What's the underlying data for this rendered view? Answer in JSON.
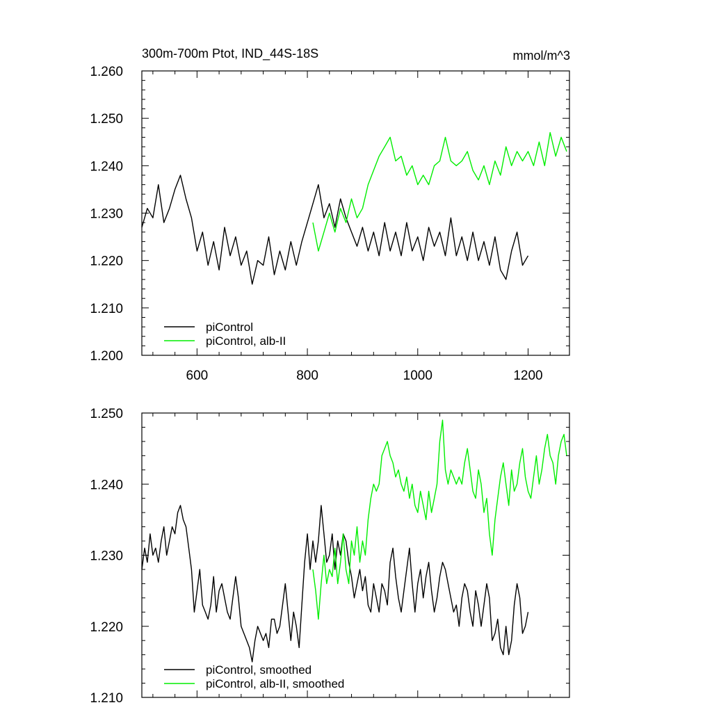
{
  "chart_data": [
    {
      "type": "line",
      "title": "300m-700m Ptot, IND_44S-18S",
      "units": "mmol/m^3",
      "xlabel": "",
      "ylabel": "",
      "xlim": [
        500,
        1275
      ],
      "ylim": [
        1.2,
        1.26
      ],
      "xticks": [
        600,
        800,
        1000,
        1200
      ],
      "xtick_labels": [
        "600",
        "800",
        "1000",
        "1200"
      ],
      "yticks": [
        1.2,
        1.21,
        1.22,
        1.23,
        1.24,
        1.25,
        1.26
      ],
      "ytick_labels": [
        "1.200",
        "1.210",
        "1.220",
        "1.230",
        "1.240",
        "1.250",
        "1.260"
      ],
      "grid": false,
      "legend_position": "bottom-left",
      "colors": {
        "piControl": "#000000",
        "alb-II": "#00ee00"
      },
      "series": [
        {
          "name": "piControl",
          "color": "#000000",
          "x": [
            500,
            510,
            520,
            530,
            540,
            550,
            560,
            570,
            580,
            590,
            600,
            610,
            620,
            630,
            640,
            650,
            660,
            670,
            680,
            690,
            700,
            710,
            720,
            730,
            740,
            750,
            760,
            770,
            780,
            790,
            800,
            810,
            820,
            830,
            840,
            850,
            860,
            870,
            880,
            890,
            900,
            910,
            920,
            930,
            940,
            950,
            960,
            970,
            980,
            990,
            1000,
            1010,
            1020,
            1030,
            1040,
            1050,
            1060,
            1070,
            1080,
            1090,
            1100,
            1110,
            1120,
            1130,
            1140,
            1150,
            1160,
            1170,
            1180,
            1190,
            1200
          ],
          "y": [
            1.227,
            1.231,
            1.229,
            1.236,
            1.228,
            1.231,
            1.235,
            1.238,
            1.233,
            1.229,
            1.222,
            1.226,
            1.219,
            1.224,
            1.218,
            1.227,
            1.221,
            1.225,
            1.219,
            1.222,
            1.215,
            1.22,
            1.219,
            1.225,
            1.217,
            1.222,
            1.218,
            1.224,
            1.219,
            1.224,
            1.228,
            1.232,
            1.236,
            1.229,
            1.232,
            1.227,
            1.233,
            1.229,
            1.226,
            1.223,
            1.227,
            1.222,
            1.226,
            1.221,
            1.228,
            1.222,
            1.226,
            1.221,
            1.228,
            1.222,
            1.225,
            1.22,
            1.227,
            1.223,
            1.226,
            1.221,
            1.229,
            1.221,
            1.225,
            1.22,
            1.226,
            1.22,
            1.224,
            1.219,
            1.225,
            1.218,
            1.216,
            1.222,
            1.226,
            1.219,
            1.221
          ]
        },
        {
          "name": "piControl, alb-II",
          "color": "#00ee00",
          "x": [
            810,
            820,
            830,
            840,
            850,
            860,
            870,
            880,
            890,
            900,
            910,
            920,
            930,
            940,
            950,
            960,
            970,
            980,
            990,
            1000,
            1010,
            1020,
            1030,
            1040,
            1050,
            1060,
            1070,
            1080,
            1090,
            1100,
            1110,
            1120,
            1130,
            1140,
            1150,
            1160,
            1170,
            1180,
            1190,
            1200,
            1210,
            1220,
            1230,
            1240,
            1250,
            1260,
            1270
          ],
          "y": [
            1.228,
            1.222,
            1.226,
            1.23,
            1.226,
            1.231,
            1.228,
            1.233,
            1.229,
            1.231,
            1.236,
            1.239,
            1.242,
            1.244,
            1.246,
            1.241,
            1.242,
            1.238,
            1.24,
            1.236,
            1.238,
            1.236,
            1.24,
            1.241,
            1.246,
            1.241,
            1.24,
            1.241,
            1.243,
            1.239,
            1.237,
            1.24,
            1.236,
            1.241,
            1.238,
            1.244,
            1.24,
            1.243,
            1.241,
            1.243,
            1.24,
            1.245,
            1.24,
            1.247,
            1.242,
            1.246,
            1.243
          ]
        }
      ]
    },
    {
      "type": "line",
      "title": "",
      "xlabel": "",
      "ylabel": "",
      "xlim": [
        500,
        1275
      ],
      "ylim": [
        1.21,
        1.25
      ],
      "xticks": [
        600,
        800,
        1000,
        1200
      ],
      "yticks": [
        1.21,
        1.22,
        1.23,
        1.24,
        1.25
      ],
      "ytick_labels": [
        "1.210",
        "1.220",
        "1.230",
        "1.240",
        "1.250"
      ],
      "grid": false,
      "legend_position": "bottom-left",
      "series": [
        {
          "name": "piControl, smoothed",
          "color": "#000000",
          "x": [
            500,
            505,
            510,
            515,
            520,
            525,
            530,
            535,
            540,
            545,
            550,
            555,
            560,
            565,
            570,
            575,
            580,
            585,
            590,
            595,
            600,
            605,
            610,
            615,
            620,
            625,
            630,
            635,
            640,
            645,
            650,
            655,
            660,
            665,
            670,
            675,
            680,
            685,
            690,
            695,
            700,
            705,
            710,
            715,
            720,
            725,
            730,
            735,
            740,
            745,
            750,
            755,
            760,
            765,
            770,
            775,
            780,
            785,
            790,
            795,
            800,
            805,
            810,
            815,
            820,
            825,
            830,
            835,
            840,
            845,
            850,
            855,
            860,
            865,
            870,
            875,
            880,
            885,
            890,
            895,
            900,
            905,
            910,
            915,
            920,
            925,
            930,
            935,
            940,
            945,
            950,
            955,
            960,
            965,
            970,
            975,
            980,
            985,
            990,
            995,
            1000,
            1005,
            1010,
            1015,
            1020,
            1025,
            1030,
            1035,
            1040,
            1045,
            1050,
            1055,
            1060,
            1065,
            1070,
            1075,
            1080,
            1085,
            1090,
            1095,
            1100,
            1105,
            1110,
            1115,
            1120,
            1125,
            1130,
            1135,
            1140,
            1145,
            1150,
            1155,
            1160,
            1165,
            1170,
            1175,
            1180,
            1185,
            1190,
            1195,
            1200
          ],
          "y": [
            1.228,
            1.231,
            1.229,
            1.233,
            1.23,
            1.231,
            1.229,
            1.232,
            1.234,
            1.23,
            1.232,
            1.234,
            1.233,
            1.236,
            1.237,
            1.235,
            1.234,
            1.231,
            1.228,
            1.222,
            1.225,
            1.228,
            1.223,
            1.222,
            1.221,
            1.223,
            1.227,
            1.222,
            1.225,
            1.226,
            1.224,
            1.222,
            1.221,
            1.224,
            1.227,
            1.224,
            1.22,
            1.219,
            1.218,
            1.217,
            1.215,
            1.218,
            1.22,
            1.219,
            1.218,
            1.219,
            1.217,
            1.221,
            1.221,
            1.219,
            1.22,
            1.223,
            1.226,
            1.222,
            1.218,
            1.222,
            1.22,
            1.217,
            1.223,
            1.229,
            1.233,
            1.228,
            1.232,
            1.229,
            1.232,
            1.237,
            1.233,
            1.229,
            1.23,
            1.233,
            1.228,
            1.232,
            1.23,
            1.233,
            1.232,
            1.229,
            1.227,
            1.224,
            1.226,
            1.228,
            1.225,
            1.227,
            1.223,
            1.222,
            1.226,
            1.224,
            1.222,
            1.226,
            1.225,
            1.223,
            1.229,
            1.231,
            1.227,
            1.224,
            1.222,
            1.225,
            1.228,
            1.231,
            1.226,
            1.222,
            1.226,
            1.228,
            1.224,
            1.227,
            1.229,
            1.225,
            1.222,
            1.224,
            1.227,
            1.229,
            1.228,
            1.226,
            1.224,
            1.222,
            1.223,
            1.22,
            1.224,
            1.226,
            1.225,
            1.222,
            1.22,
            1.225,
            1.223,
            1.22,
            1.223,
            1.226,
            1.224,
            1.218,
            1.219,
            1.221,
            1.217,
            1.216,
            1.22,
            1.216,
            1.218,
            1.223,
            1.226,
            1.224,
            1.219,
            1.22,
            1.222
          ]
        },
        {
          "name": "piControl, alb-II, smoothed",
          "color": "#00ee00",
          "x": [
            810,
            815,
            820,
            825,
            830,
            835,
            840,
            845,
            850,
            855,
            860,
            865,
            870,
            875,
            880,
            885,
            890,
            895,
            900,
            905,
            910,
            915,
            920,
            925,
            930,
            935,
            940,
            945,
            950,
            955,
            960,
            965,
            970,
            975,
            980,
            985,
            990,
            995,
            1000,
            1005,
            1010,
            1015,
            1020,
            1025,
            1030,
            1035,
            1040,
            1045,
            1050,
            1055,
            1060,
            1065,
            1070,
            1075,
            1080,
            1085,
            1090,
            1095,
            1100,
            1105,
            1110,
            1115,
            1120,
            1125,
            1130,
            1135,
            1140,
            1145,
            1150,
            1155,
            1160,
            1165,
            1170,
            1175,
            1180,
            1185,
            1190,
            1195,
            1200,
            1205,
            1210,
            1215,
            1220,
            1225,
            1230,
            1235,
            1240,
            1245,
            1250,
            1255,
            1260,
            1265,
            1270
          ],
          "y": [
            1.228,
            1.225,
            1.221,
            1.226,
            1.23,
            1.226,
            1.228,
            1.227,
            1.231,
            1.226,
            1.229,
            1.233,
            1.228,
            1.226,
            1.232,
            1.23,
            1.234,
            1.229,
            1.232,
            1.23,
            1.235,
            1.238,
            1.24,
            1.239,
            1.24,
            1.244,
            1.245,
            1.246,
            1.244,
            1.243,
            1.241,
            1.242,
            1.24,
            1.239,
            1.241,
            1.238,
            1.24,
            1.237,
            1.236,
            1.239,
            1.237,
            1.235,
            1.239,
            1.236,
            1.238,
            1.24,
            1.246,
            1.249,
            1.242,
            1.24,
            1.242,
            1.241,
            1.24,
            1.241,
            1.24,
            1.243,
            1.245,
            1.242,
            1.239,
            1.238,
            1.242,
            1.24,
            1.236,
            1.238,
            1.233,
            1.23,
            1.235,
            1.238,
            1.241,
            1.243,
            1.24,
            1.237,
            1.242,
            1.239,
            1.24,
            1.243,
            1.245,
            1.241,
            1.239,
            1.238,
            1.241,
            1.244,
            1.24,
            1.242,
            1.245,
            1.247,
            1.244,
            1.243,
            1.24,
            1.244,
            1.246,
            1.247,
            1.244
          ]
        }
      ]
    }
  ]
}
